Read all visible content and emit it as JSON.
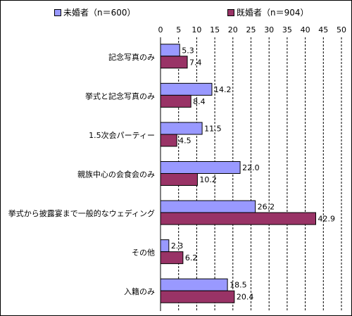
{
  "chart_data": {
    "type": "bar",
    "orientation": "horizontal",
    "categories": [
      "記念写真のみ",
      "挙式と記念写真のみ",
      "1.5次会パーティー",
      "親族中心の会食会のみ",
      "挙式から披露宴まで一般的なウェディング",
      "その他",
      "入籍のみ"
    ],
    "series": [
      {
        "name": "未婚者（n＝600）",
        "color": "#9999ff",
        "values": [
          5.3,
          14.2,
          11.5,
          22.0,
          26.2,
          2.3,
          18.5
        ]
      },
      {
        "name": "既婚者（n＝904）",
        "color": "#993366",
        "values": [
          7.4,
          8.4,
          4.5,
          10.2,
          42.9,
          6.2,
          20.4
        ]
      }
    ],
    "data_labels": [
      [
        "5.3",
        "14.2",
        "11.5",
        "22.0",
        "26.2",
        "2.3",
        "18.5"
      ],
      [
        "7.4",
        "8.4",
        "4.5",
        "10.2",
        "42.9",
        "6.2",
        "20.4"
      ]
    ],
    "xticks": [
      "0",
      "5",
      "10",
      "15",
      "20",
      "25",
      "30",
      "35",
      "40",
      "45",
      "50"
    ],
    "xlim": [
      0,
      50
    ],
    "grid": "dashed vertical",
    "legend_position": "top",
    "title": "",
    "xlabel": "",
    "ylabel": ""
  }
}
